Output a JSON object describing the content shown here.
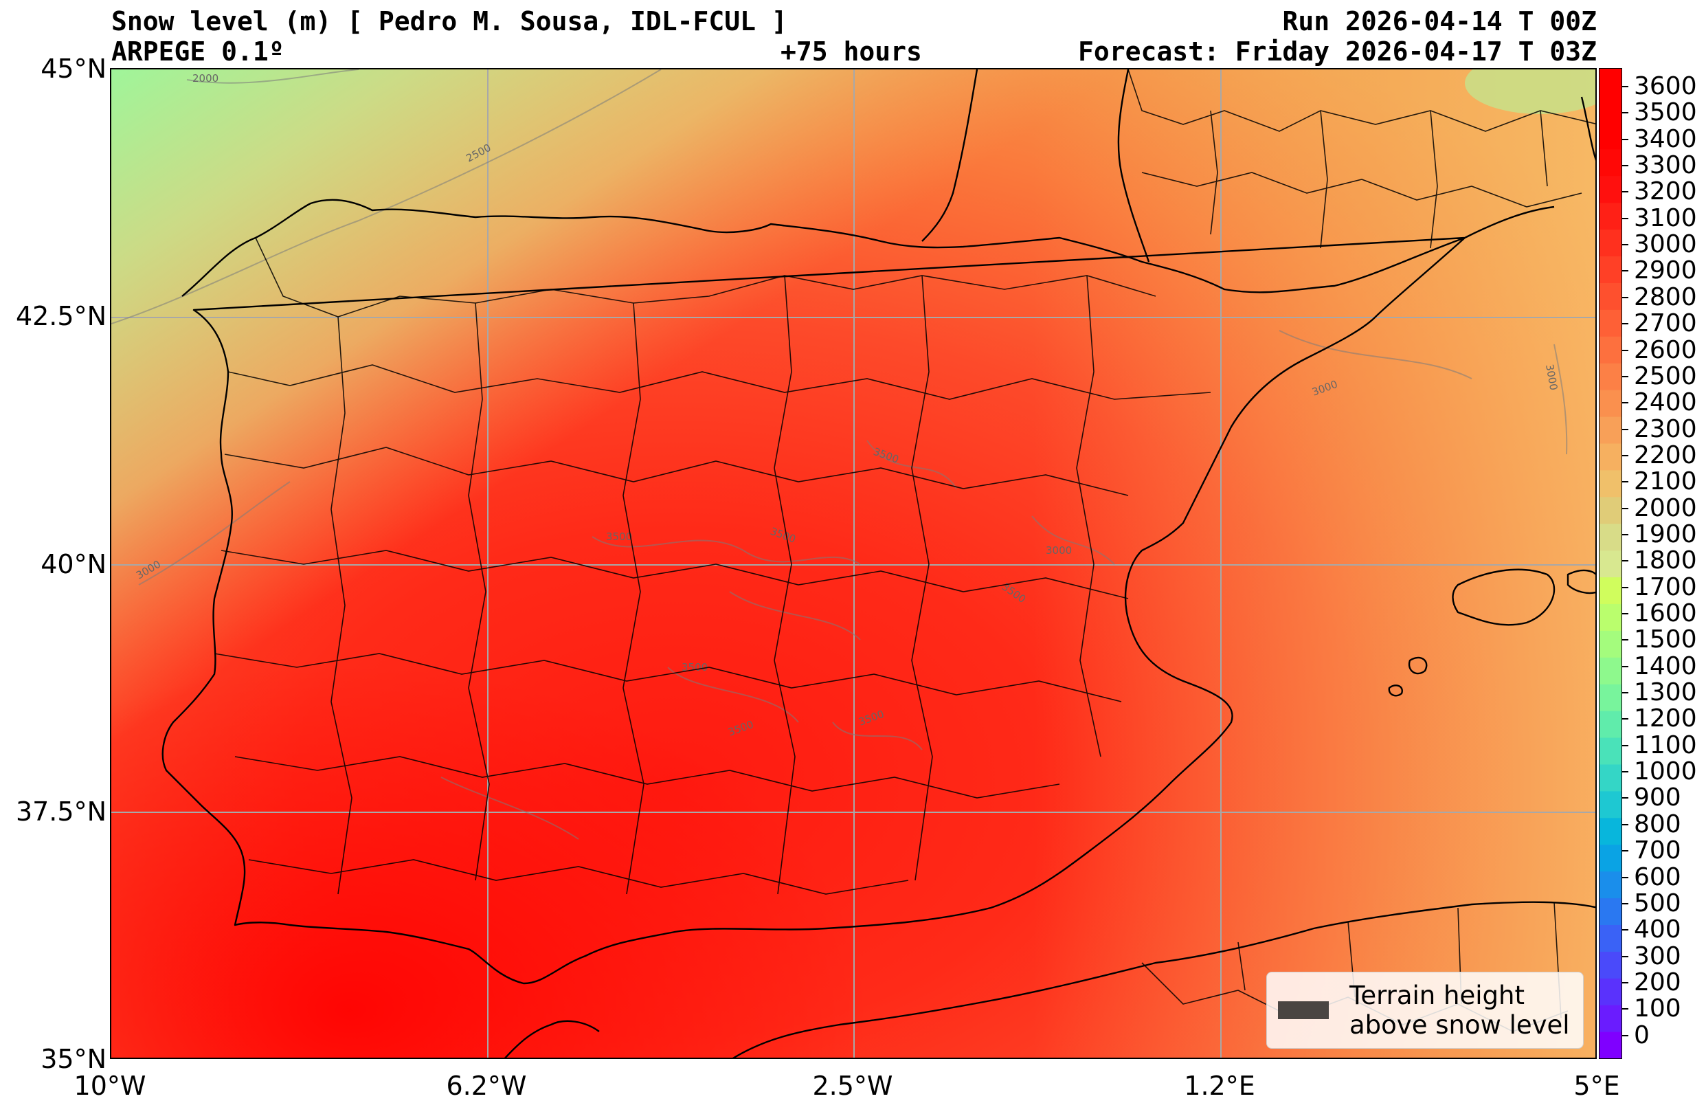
{
  "header": {
    "title_left": "Snow level (m) [ Pedro M. Sousa, IDL-FCUL ]",
    "subtitle_left": "ARPEGE 0.1º",
    "lead_time": "+75 hours",
    "run": "Run 2026-04-14 T 00Z",
    "forecast": "Forecast: Friday 2026-04-17 T 03Z"
  },
  "axes": {
    "lat_ticks": [
      "45°N",
      "42.5°N",
      "40°N",
      "37.5°N",
      "35°N"
    ],
    "lon_ticks": [
      "10°W",
      "6.2°W",
      "2.5°W",
      "1.2°E",
      "5°E"
    ]
  },
  "colorbar": {
    "labels": [
      "3600",
      "3500",
      "3400",
      "3300",
      "3200",
      "3100",
      "3000",
      "2900",
      "2800",
      "2700",
      "2600",
      "2500",
      "2400",
      "2300",
      "2200",
      "2100",
      "2000",
      "1900",
      "1800",
      "1700",
      "1600",
      "1500",
      "1400",
      "1300",
      "1200",
      "1100",
      "1000",
      "900",
      "800",
      "700",
      "600",
      "500",
      "400",
      "300",
      "200",
      "100",
      "0"
    ],
    "colors_low_to_high": [
      "#7f00ff",
      "#6a1cfe",
      "#5a32fc",
      "#4a4afa",
      "#3a62f6",
      "#2a78f1",
      "#1a8eeb",
      "#0aa3e4",
      "#08b6dc",
      "#1ec8d2",
      "#34d6c6",
      "#4ae2b9",
      "#60ecab",
      "#78f49c",
      "#8ef98d",
      "#a4fc7d",
      "#bafe6d",
      "#d0fd5d",
      "#d8e890",
      "#d8dc88",
      "#e0cc78",
      "#f0c06a",
      "#f6b060",
      "#f8a058",
      "#fa904e",
      "#fc8046",
      "#fd703e",
      "#fe6036",
      "#fe502e",
      "#ff4026",
      "#ff301e",
      "#ff2016",
      "#ff100e",
      "#ff0806",
      "#ff0000",
      "#ff0000",
      "#ff0000"
    ]
  },
  "contour_labels": [
    "2000",
    "2500",
    "3000",
    "3500",
    "3500",
    "3500",
    "3000",
    "3500",
    "3500",
    "3500",
    "3500",
    "3000",
    "3000"
  ],
  "legend": {
    "text": "Terrain height\nabove snow level",
    "swatch_color": "#4a4542"
  }
}
